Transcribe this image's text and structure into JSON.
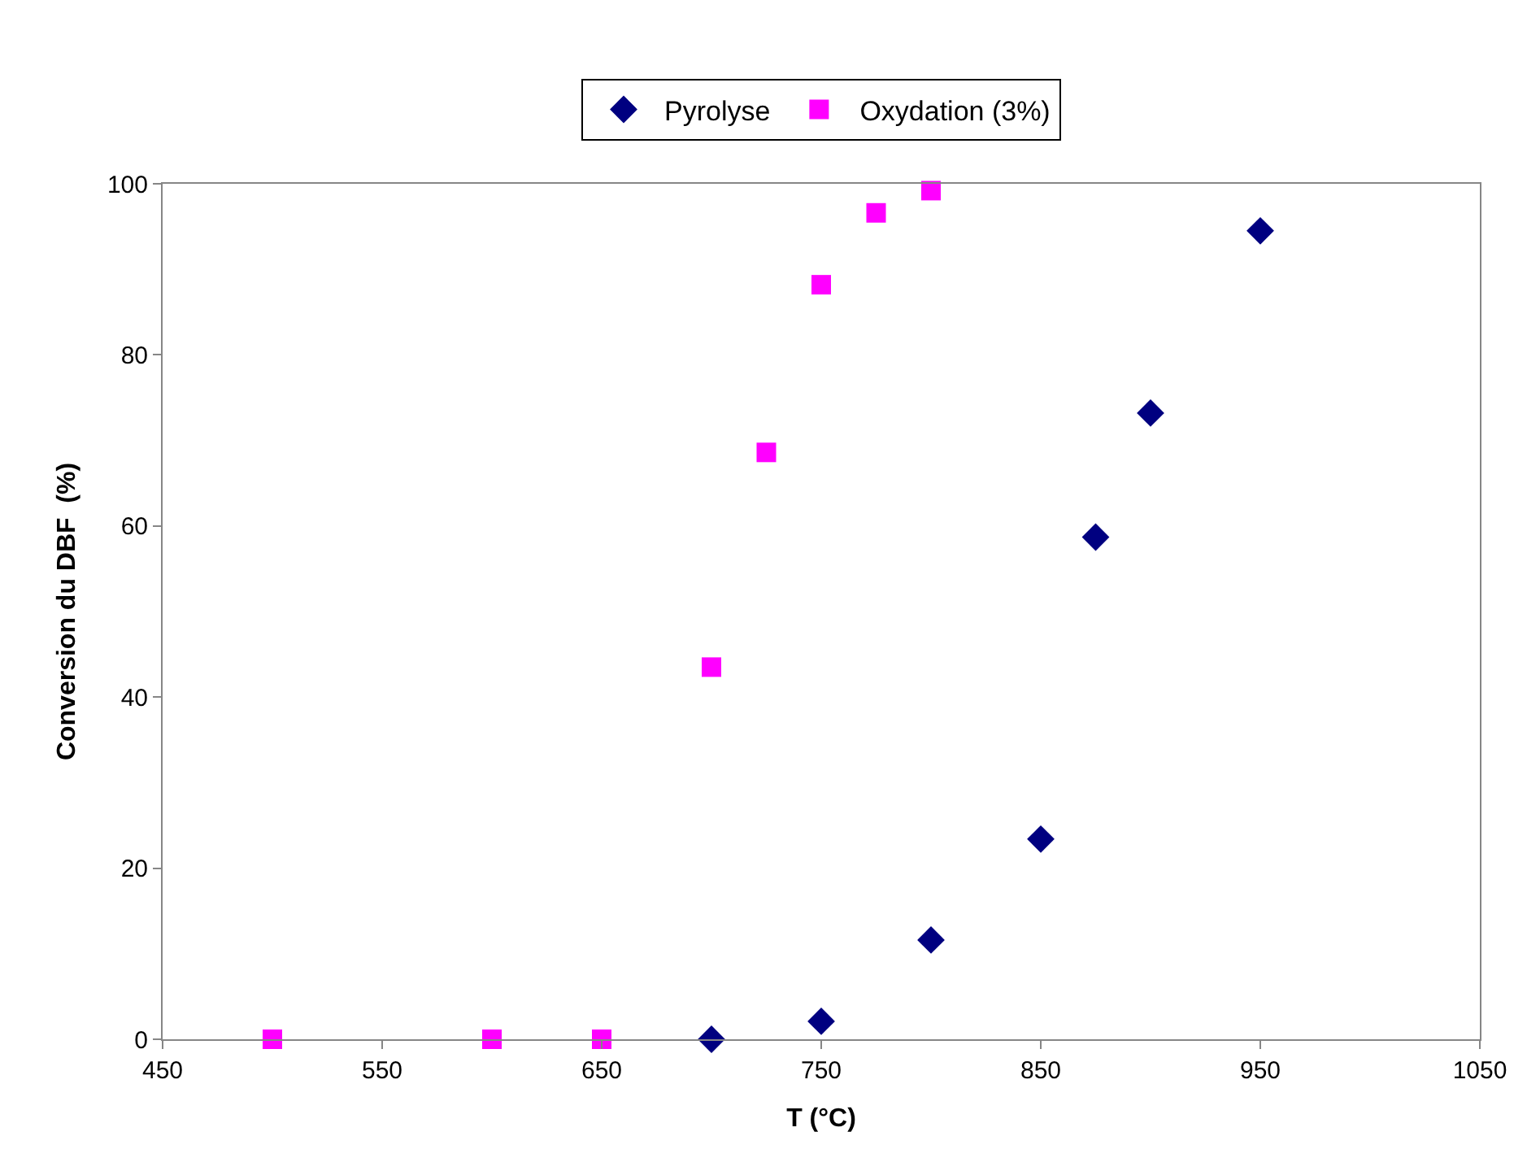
{
  "chart_data": {
    "type": "scatter",
    "xlabel": "T (°C)",
    "ylabel": "Conversion du DBF  (%)",
    "xlim": [
      450,
      1050
    ],
    "xticks": [
      450,
      550,
      650,
      750,
      850,
      950,
      1050
    ],
    "ylim": [
      0,
      100
    ],
    "yticks": [
      0,
      20,
      40,
      60,
      80,
      100
    ],
    "legend": "top",
    "series": [
      {
        "name": "Pyrolyse",
        "color": "#000080",
        "marker": "diamond",
        "x": [
          700,
          750,
          800,
          850,
          875,
          900,
          950
        ],
        "values": [
          0,
          2.1,
          11.6,
          23.4,
          58.7,
          73.2,
          94.5
        ]
      },
      {
        "name": "Oxydation (3%)",
        "color": "#ff00ff",
        "marker": "square",
        "x": [
          500,
          600,
          650,
          700,
          725,
          750,
          775,
          800
        ],
        "values": [
          0,
          0,
          0,
          43.5,
          68.6,
          88.2,
          96.6,
          99.2
        ]
      }
    ]
  }
}
